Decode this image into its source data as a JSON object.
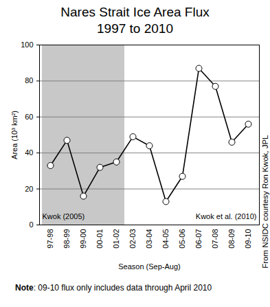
{
  "chart_data": {
    "type": "line",
    "title": "Nares Strait Ice Area Flux",
    "subtitle": "1997 to 2010",
    "x_label": "Season (Sep-Aug)",
    "y_label": "Area (10³ km²)",
    "categories": [
      "97-98",
      "98-99",
      "99-00",
      "00-01",
      "01-02",
      "02-03",
      "03-04",
      "04-05",
      "05-06",
      "06-07",
      "07-08",
      "08-09",
      "09-10"
    ],
    "values": [
      33,
      47,
      16,
      32,
      35,
      49,
      44,
      13,
      27,
      87,
      77,
      46,
      56
    ],
    "color": "#000000",
    "marker": "circle",
    "ylim": [
      0,
      100
    ],
    "yticks": [
      0,
      20,
      40,
      60,
      80,
      100
    ],
    "grid": true,
    "annotations": [
      {
        "text": "Kwok (2005)",
        "from": "97-98",
        "to": "01-02",
        "shaded": true
      },
      {
        "text": "Kwok et al. (2010)",
        "from": "02-03",
        "to": "09-10",
        "shaded": false
      }
    ],
    "credit": "From NSIDC courtesy Ron Kwok, JPL",
    "note": "Note: 09-10 flux only includes data through April 2010"
  }
}
